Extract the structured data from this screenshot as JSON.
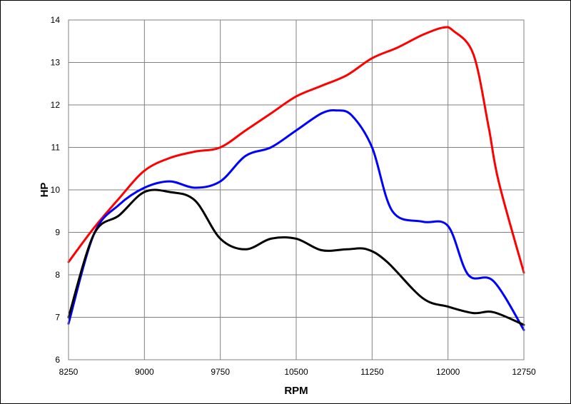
{
  "chart_data": {
    "type": "line",
    "title": "",
    "xlabel": "RPM",
    "ylabel": "HP",
    "xlim": [
      8250,
      12750
    ],
    "ylim": [
      6,
      14
    ],
    "x_ticks": [
      8250,
      9000,
      9750,
      10500,
      11250,
      12000,
      12750
    ],
    "y_ticks": [
      6,
      7,
      8,
      9,
      10,
      11,
      12,
      13,
      14
    ],
    "grid": true,
    "legend": "none",
    "series": [
      {
        "color": "#ff0000",
        "points": [
          [
            8250,
            8.3
          ],
          [
            8500,
            9.1
          ],
          [
            8750,
            9.8
          ],
          [
            9000,
            10.45
          ],
          [
            9250,
            10.75
          ],
          [
            9500,
            10.9
          ],
          [
            9750,
            11.0
          ],
          [
            10000,
            11.4
          ],
          [
            10250,
            11.8
          ],
          [
            10500,
            12.2
          ],
          [
            10750,
            12.45
          ],
          [
            11000,
            12.7
          ],
          [
            11250,
            13.1
          ],
          [
            11500,
            13.35
          ],
          [
            11750,
            13.65
          ],
          [
            11950,
            13.82
          ],
          [
            12050,
            13.75
          ],
          [
            12250,
            13.2
          ],
          [
            12400,
            11.5
          ],
          [
            12500,
            10.2
          ],
          [
            12750,
            8.05
          ]
        ]
      },
      {
        "color": "#0000ff",
        "points": [
          [
            8250,
            6.85
          ],
          [
            8500,
            8.95
          ],
          [
            8750,
            9.65
          ],
          [
            9000,
            10.05
          ],
          [
            9250,
            10.2
          ],
          [
            9500,
            10.05
          ],
          [
            9750,
            10.2
          ],
          [
            10000,
            10.8
          ],
          [
            10250,
            11.0
          ],
          [
            10500,
            11.4
          ],
          [
            10750,
            11.8
          ],
          [
            10900,
            11.87
          ],
          [
            11050,
            11.75
          ],
          [
            11250,
            11.0
          ],
          [
            11450,
            9.5
          ],
          [
            11750,
            9.25
          ],
          [
            12000,
            9.15
          ],
          [
            12200,
            8.0
          ],
          [
            12450,
            7.85
          ],
          [
            12750,
            6.7
          ]
        ]
      },
      {
        "color": "#000000",
        "points": [
          [
            8250,
            7.0
          ],
          [
            8500,
            8.95
          ],
          [
            8750,
            9.4
          ],
          [
            9000,
            9.95
          ],
          [
            9250,
            9.95
          ],
          [
            9500,
            9.75
          ],
          [
            9750,
            8.85
          ],
          [
            10000,
            8.6
          ],
          [
            10250,
            8.85
          ],
          [
            10500,
            8.85
          ],
          [
            10750,
            8.58
          ],
          [
            11000,
            8.6
          ],
          [
            11200,
            8.6
          ],
          [
            11400,
            8.3
          ],
          [
            11750,
            7.45
          ],
          [
            12000,
            7.25
          ],
          [
            12250,
            7.1
          ],
          [
            12450,
            7.12
          ],
          [
            12750,
            6.82
          ]
        ]
      }
    ]
  }
}
